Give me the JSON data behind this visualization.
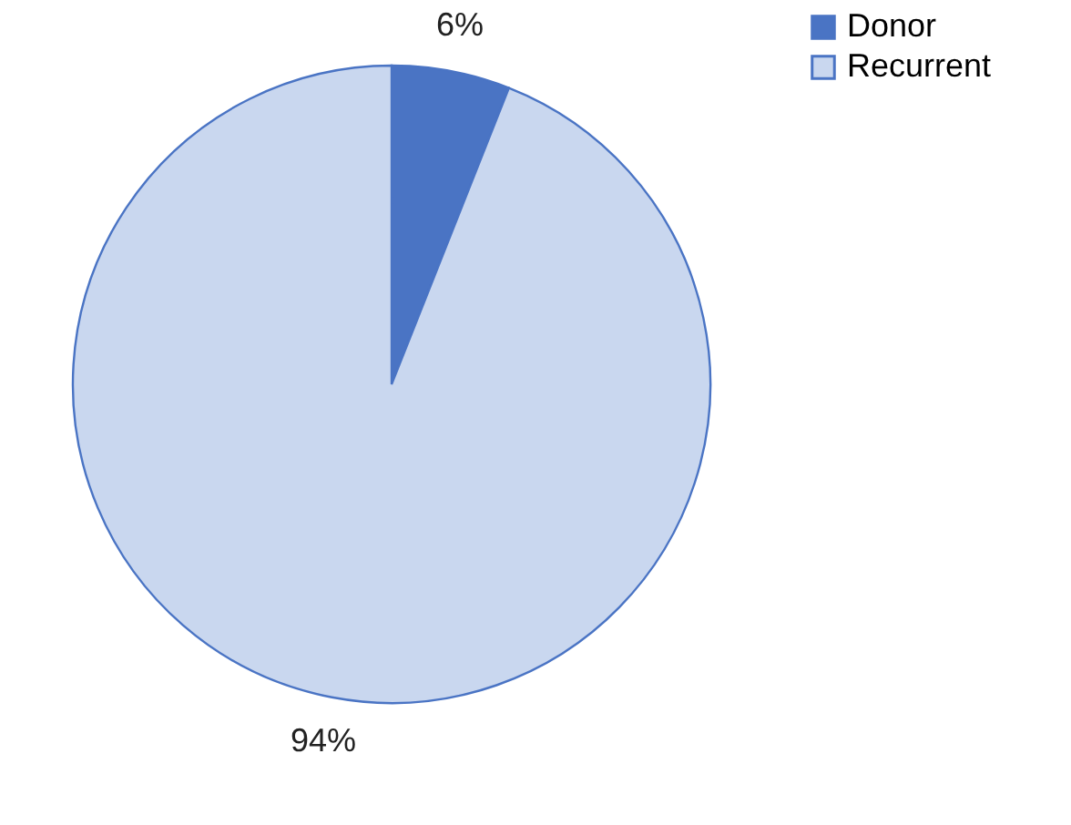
{
  "chart_data": {
    "type": "pie",
    "categories": [
      "Donor",
      "Recurrent"
    ],
    "values": [
      6,
      94
    ],
    "colors": [
      "#4a74c4",
      "#c9d7ef"
    ],
    "value_labels": [
      "6%",
      "94%"
    ],
    "legend": "right"
  }
}
